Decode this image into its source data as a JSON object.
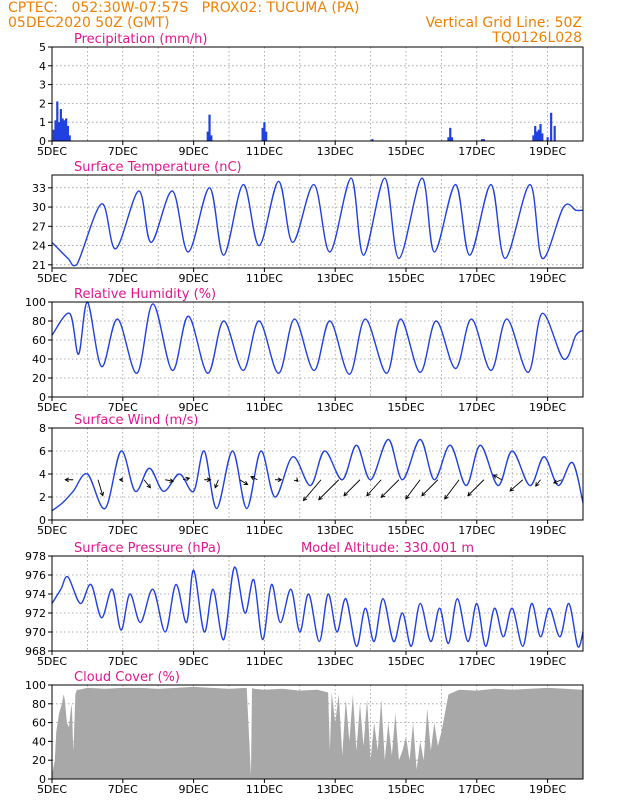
{
  "header": {
    "line1": "CPTEC:   052:30W-07:57S   PROX02: TUCUMA (PA)",
    "line2": "05DEC2020 50Z (GMT)",
    "vgrid": "Vertical Grid Line: 50Z",
    "code": "TQ0126L028"
  },
  "x_tick_labels": [
    "5DEC",
    "7DEC",
    "9DEC",
    "11DEC",
    "13DEC",
    "15DEC",
    "17DEC",
    "19DEC"
  ],
  "model_altitude": "Model Altitude: 330.001 m",
  "colors": {
    "header": "#f08000",
    "title": "#e0188c",
    "line": "#2040e0",
    "cloud": "#a8a8a8"
  },
  "chart_data": [
    {
      "type": "bar",
      "title": "Precipitation (mm/h)",
      "ylim": [
        0,
        5
      ],
      "yticks": [
        "0",
        "1",
        "2",
        "3",
        "4",
        "5"
      ],
      "x": [
        5.05,
        5.1,
        5.15,
        5.2,
        5.25,
        5.3,
        5.35,
        5.4,
        5.45,
        5.5,
        9.4,
        9.45,
        9.5,
        10.95,
        11.0,
        11.05,
        14.05,
        16.2,
        16.25,
        16.3,
        17.15,
        17.2,
        18.6,
        18.65,
        18.7,
        18.75,
        18.8,
        18.85,
        19.0,
        19.1,
        19.2
      ],
      "values": [
        0.6,
        1.1,
        2.1,
        1.0,
        1.7,
        1.2,
        1.1,
        1.2,
        0.8,
        0.3,
        0.5,
        1.4,
        0.3,
        0.7,
        1.0,
        0.5,
        0.1,
        0.2,
        0.7,
        0.2,
        0.1,
        0.1,
        0.3,
        0.8,
        0.5,
        0.6,
        0.9,
        0.4,
        0.2,
        1.5,
        0.8
      ]
    },
    {
      "type": "line",
      "title": "Surface Temperature (nC)",
      "ylim": [
        20.5,
        35
      ],
      "yticks": [
        "21",
        "24",
        "27",
        "30",
        "33"
      ],
      "x": [
        5.0,
        5.45,
        5.7,
        6.4,
        6.8,
        7.45,
        7.8,
        8.4,
        8.85,
        9.45,
        9.85,
        10.4,
        10.85,
        11.4,
        11.8,
        12.4,
        12.85,
        13.45,
        13.8,
        14.4,
        14.8,
        15.45,
        15.8,
        16.4,
        16.8,
        17.4,
        17.8,
        18.5,
        18.85,
        19.45,
        19.8,
        20.0
      ],
      "values": [
        24.5,
        22.0,
        21.0,
        30.5,
        23.5,
        32.5,
        24.5,
        32.5,
        23.0,
        33.0,
        22.5,
        33.5,
        24.0,
        34.0,
        24.5,
        33.5,
        23.0,
        34.5,
        22.5,
        34.5,
        22.0,
        34.5,
        23.0,
        33.5,
        22.5,
        33.5,
        22.0,
        33.5,
        22.0,
        30.0,
        29.5,
        29.5
      ]
    },
    {
      "type": "line",
      "title": "Relative Humidity (%)",
      "ylim": [
        0,
        100
      ],
      "yticks": [
        "0",
        "20",
        "40",
        "60",
        "80",
        "100"
      ],
      "x": [
        5.0,
        5.5,
        5.75,
        6.0,
        6.4,
        6.85,
        7.4,
        7.85,
        8.4,
        8.85,
        9.4,
        9.85,
        10.4,
        10.85,
        11.4,
        11.85,
        12.4,
        12.85,
        13.4,
        13.85,
        14.45,
        14.85,
        15.4,
        15.85,
        16.4,
        16.85,
        17.4,
        17.85,
        18.45,
        18.85,
        19.45,
        19.8,
        20.0
      ],
      "values": [
        65,
        88,
        45,
        100,
        32,
        82,
        25,
        98,
        28,
        85,
        25,
        80,
        28,
        80,
        25,
        82,
        28,
        80,
        24,
        82,
        25,
        82,
        26,
        80,
        30,
        82,
        28,
        82,
        26,
        88,
        40,
        65,
        70
      ]
    },
    {
      "type": "line",
      "title": "Surface Wind (m/s)",
      "ylim": [
        0,
        8
      ],
      "yticks": [
        "0",
        "2",
        "4",
        "6",
        "8"
      ],
      "x": [
        5.0,
        5.3,
        5.6,
        6.0,
        6.5,
        6.95,
        7.35,
        7.75,
        8.15,
        8.6,
        9.0,
        9.3,
        9.65,
        10.1,
        10.5,
        10.9,
        11.3,
        11.8,
        12.3,
        12.7,
        13.2,
        13.6,
        14.0,
        14.5,
        14.9,
        15.4,
        15.8,
        16.25,
        16.7,
        17.1,
        17.6,
        18.0,
        18.5,
        18.9,
        19.3,
        19.7,
        20.0
      ],
      "values": [
        0.8,
        1.5,
        2.5,
        4.0,
        1.0,
        6.0,
        2.5,
        4.5,
        2.5,
        4.0,
        2.5,
        6.0,
        1.0,
        6.0,
        1.0,
        6.0,
        2.0,
        5.5,
        3.0,
        6.0,
        3.5,
        6.5,
        3.5,
        7.0,
        3.5,
        7.0,
        3.5,
        6.5,
        3.0,
        6.5,
        3.0,
        6.0,
        3.0,
        5.5,
        3.0,
        5.0,
        1.5
      ],
      "vectors": {
        "x": [
          5.6,
          6.3,
          7.0,
          7.6,
          8.2,
          8.7,
          9.3,
          9.7,
          10.3,
          10.8,
          11.3,
          11.9,
          12.6,
          13.1,
          13.7,
          14.3,
          14.8,
          15.4,
          15.9,
          16.5,
          17.2,
          17.7,
          18.3,
          18.8,
          19.4
        ],
        "u": [
          -1.0,
          0.6,
          -0.4,
          0.8,
          1.0,
          0.8,
          0.8,
          -0.4,
          1.0,
          -0.8,
          0.8,
          0.2,
          -2.2,
          -2.5,
          -2.0,
          -1.8,
          -2.2,
          -1.8,
          -2.0,
          -1.8,
          -2.0,
          -1.0,
          -1.6,
          -0.6,
          -1.0
        ],
        "v": [
          0.0,
          -2.0,
          0.0,
          -1.0,
          -0.2,
          0.2,
          0.0,
          -1.0,
          -0.6,
          0.4,
          0.0,
          -0.2,
          -2.6,
          -2.5,
          -2.0,
          -2.0,
          -2.2,
          -2.4,
          -2.0,
          -2.4,
          -2.0,
          0.6,
          -1.4,
          -0.8,
          -0.4
        ]
      }
    },
    {
      "type": "line",
      "title": "Surface Pressure (hPa)",
      "ylim": [
        968,
        978
      ],
      "yticks": [
        "968",
        "970",
        "972",
        "974",
        "976",
        "978"
      ],
      "x": [
        5.0,
        5.25,
        5.45,
        5.8,
        6.1,
        6.4,
        6.7,
        6.95,
        7.2,
        7.5,
        7.85,
        8.2,
        8.5,
        8.8,
        9.0,
        9.3,
        9.55,
        9.85,
        10.15,
        10.45,
        10.7,
        10.95,
        11.2,
        11.45,
        11.75,
        12.0,
        12.25,
        12.55,
        12.8,
        13.05,
        13.3,
        13.6,
        13.85,
        14.1,
        14.35,
        14.65,
        14.9,
        15.15,
        15.4,
        15.7,
        15.95,
        16.2,
        16.45,
        16.75,
        17.0,
        17.25,
        17.5,
        17.75,
        18.0,
        18.3,
        18.55,
        18.8,
        19.05,
        19.35,
        19.6,
        19.85,
        20.0
      ],
      "values": [
        973.0,
        974.5,
        975.8,
        973.0,
        975.0,
        971.5,
        974.5,
        970.2,
        974.0,
        971.0,
        974.5,
        970.0,
        975.0,
        971.0,
        976.5,
        970.0,
        974.5,
        969.2,
        976.8,
        972.0,
        975.5,
        969.2,
        975.0,
        971.0,
        974.5,
        970.0,
        974.0,
        969.0,
        974.0,
        970.0,
        973.5,
        968.5,
        972.5,
        969.0,
        973.5,
        969.0,
        972.0,
        968.5,
        973.0,
        969.0,
        972.5,
        968.8,
        973.5,
        969.0,
        973.0,
        968.5,
        972.5,
        969.5,
        972.5,
        968.5,
        973.0,
        969.5,
        972.5,
        969.5,
        973.0,
        968.5,
        970.0
      ]
    },
    {
      "type": "area",
      "title": "Cloud Cover (%)",
      "ylim": [
        0,
        100
      ],
      "yticks": [
        "0",
        "20",
        "40",
        "60",
        "80",
        "100"
      ],
      "x": [
        5.0,
        5.08,
        5.12,
        5.2,
        5.28,
        5.33,
        5.36,
        5.42,
        5.48,
        5.52,
        5.56,
        5.6,
        5.62,
        5.66,
        5.7,
        5.75,
        6.0,
        6.5,
        7.0,
        7.5,
        8.0,
        8.5,
        9.0,
        9.5,
        10.0,
        10.5,
        10.62,
        10.65,
        10.7,
        11.0,
        11.5,
        12.0,
        12.5,
        12.8,
        12.85,
        12.9,
        13.0,
        13.1,
        13.2,
        13.3,
        13.4,
        13.5,
        13.6,
        13.7,
        13.8,
        13.9,
        14.0,
        14.1,
        14.2,
        14.3,
        14.4,
        14.5,
        14.6,
        14.7,
        14.8,
        14.9,
        15.0,
        15.1,
        15.2,
        15.3,
        15.4,
        15.5,
        15.6,
        15.7,
        15.8,
        15.9,
        16.0,
        16.2,
        16.5,
        17.0,
        17.5,
        18.0,
        18.5,
        19.0,
        19.5,
        20.0
      ],
      "values": [
        5,
        20,
        50,
        70,
        80,
        90,
        85,
        60,
        55,
        70,
        80,
        30,
        45,
        90,
        95,
        95,
        97,
        96,
        97,
        97,
        96,
        97,
        98,
        97,
        96,
        97,
        3,
        97,
        96,
        95,
        96,
        94,
        95,
        92,
        30,
        92,
        60,
        90,
        25,
        85,
        40,
        90,
        30,
        80,
        35,
        85,
        20,
        60,
        30,
        85,
        20,
        60,
        25,
        70,
        20,
        30,
        45,
        20,
        60,
        10,
        40,
        20,
        75,
        30,
        60,
        35,
        50,
        90,
        95,
        94,
        96,
        95,
        96,
        97,
        96,
        95
      ]
    }
  ]
}
